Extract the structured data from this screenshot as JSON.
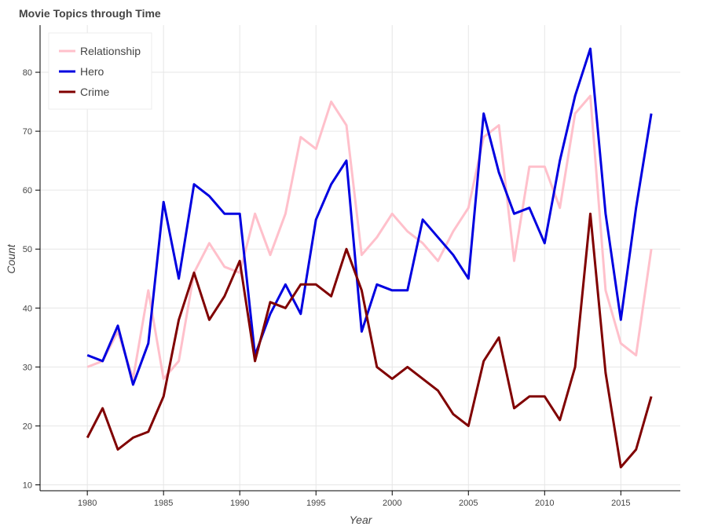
{
  "chart_data": {
    "type": "line",
    "title": "Movie Topics through Time",
    "xlabel": "Year",
    "ylabel": "Count",
    "x": [
      1980,
      1981,
      1982,
      1983,
      1984,
      1985,
      1986,
      1987,
      1988,
      1989,
      1990,
      1991,
      1992,
      1993,
      1994,
      1995,
      1996,
      1997,
      1998,
      1999,
      2000,
      2001,
      2002,
      2003,
      2004,
      2005,
      2006,
      2007,
      2008,
      2009,
      2010,
      2011,
      2012,
      2013,
      2014,
      2015,
      2016,
      2017
    ],
    "xlim": [
      1976.9,
      2018.9
    ],
    "ylim": [
      9,
      88
    ],
    "xticks": [
      1980,
      1985,
      1990,
      1995,
      2000,
      2005,
      2010,
      2015
    ],
    "yticks": [
      10,
      20,
      30,
      40,
      50,
      60,
      70,
      80
    ],
    "grid": true,
    "legend_position": "top-left",
    "series": [
      {
        "name": "Relationship",
        "color": "#ffc0cb",
        "values": [
          30,
          31,
          36,
          28,
          43,
          28,
          31,
          46,
          51,
          47,
          46,
          56,
          49,
          56,
          69,
          67,
          75,
          71,
          49,
          52,
          56,
          53,
          51,
          48,
          53,
          57,
          69,
          71,
          48,
          64,
          64,
          57,
          73,
          76,
          43,
          34,
          32,
          50
        ]
      },
      {
        "name": "Hero",
        "color": "#0000e0",
        "values": [
          32,
          31,
          37,
          27,
          34,
          58,
          45,
          61,
          59,
          56,
          56,
          32,
          39,
          44,
          39,
          55,
          61,
          65,
          36,
          44,
          43,
          43,
          55,
          52,
          49,
          45,
          73,
          63,
          56,
          57,
          51,
          65,
          76,
          84,
          56,
          38,
          57,
          73
        ]
      },
      {
        "name": "Crime",
        "color": "#800000",
        "values": [
          18,
          23,
          16,
          18,
          19,
          25,
          38,
          46,
          38,
          42,
          48,
          31,
          41,
          40,
          44,
          44,
          42,
          50,
          43,
          30,
          28,
          30,
          28,
          26,
          22,
          20,
          31,
          35,
          23,
          25,
          25,
          21,
          30,
          56,
          29,
          13,
          16,
          25
        ]
      }
    ]
  }
}
